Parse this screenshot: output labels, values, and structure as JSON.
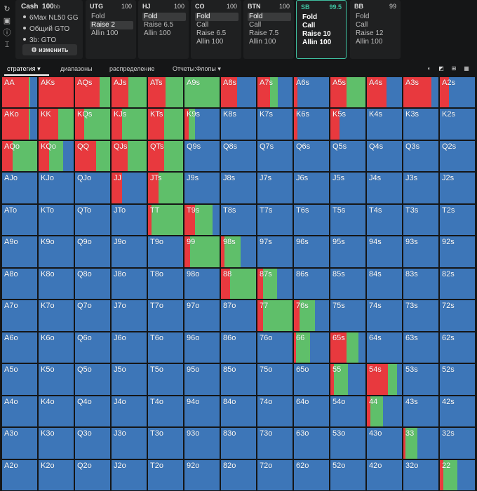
{
  "colors": {
    "raise": "#e8393e",
    "call": "#5fbf6a",
    "fold": "#3d76b8",
    "accent": "#3fbf9f"
  },
  "tools": [
    "refresh-icon",
    "save-icon",
    "info-icon",
    "filter-icon"
  ],
  "info": {
    "title": "Cash",
    "stack": "100",
    "stack_unit": "bb",
    "lines": [
      "6Max NL50 GG",
      "Общий GTO",
      "3b: GTO"
    ],
    "edit_label": "⚙ изменить"
  },
  "positions": [
    {
      "name": "UTG",
      "stack": "100",
      "actions": [
        "Fold",
        "Raise 2",
        "Allin 100"
      ],
      "selected": 1,
      "active": false
    },
    {
      "name": "HJ",
      "stack": "100",
      "actions": [
        "Fold",
        "Raise 6.5",
        "Allin 100"
      ],
      "selected": 0,
      "active": false
    },
    {
      "name": "CO",
      "stack": "100",
      "actions": [
        "Fold",
        "Call",
        "Raise 6.5",
        "Allin 100"
      ],
      "selected": 0,
      "active": false
    },
    {
      "name": "BTN",
      "stack": "100",
      "actions": [
        "Fold",
        "Call",
        "Raise 7.5",
        "Allin 100"
      ],
      "selected": 0,
      "active": false
    },
    {
      "name": "SB",
      "stack": "99.5",
      "actions": [
        "Fold",
        "Call",
        "Raise 10",
        "Allin 100"
      ],
      "selected": -1,
      "active": true
    },
    {
      "name": "BB",
      "stack": "99",
      "actions": [
        "Fold",
        "Call",
        "Raise 12",
        "Allin 100"
      ],
      "selected": -1,
      "active": false
    }
  ],
  "tabs": [
    "стратегия ▾",
    "диапазоны",
    "распределение",
    "Отчеты:Флопы ▾"
  ],
  "ranks": [
    "A",
    "K",
    "Q",
    "J",
    "T",
    "9",
    "8",
    "7",
    "6",
    "5",
    "4",
    "3",
    "2"
  ],
  "hand_freqs": {
    "AA": [
      0.75,
      0.05
    ],
    "AKs": [
      1.0,
      0.0
    ],
    "AQs": [
      0.7,
      0.3
    ],
    "AJs": [
      0.48,
      0.52
    ],
    "ATs": [
      0.5,
      0.5
    ],
    "A9s": [
      0.0,
      1.0
    ],
    "A8s": [
      0.45,
      0.0
    ],
    "A7s": [
      0.35,
      0.22
    ],
    "A6s": [
      0.1,
      0.0
    ],
    "A5s": [
      0.45,
      0.55
    ],
    "A4s": [
      0.55,
      0.0
    ],
    "A3s": [
      0.8,
      0.0
    ],
    "A2s": [
      0.25,
      0.0
    ],
    "AKo": [
      0.75,
      0.05
    ],
    "KK": [
      0.55,
      0.45
    ],
    "KQs": [
      0.25,
      0.75
    ],
    "KJs": [
      0.3,
      0.7
    ],
    "KTs": [
      0.45,
      0.55
    ],
    "K9s": [
      0.12,
      0.18
    ],
    "K6s": [
      0.1,
      0.0
    ],
    "K5s": [
      0.25,
      0.0
    ],
    "AQo": [
      0.3,
      0.7
    ],
    "KQo": [
      0.3,
      0.4
    ],
    "QQ": [
      0.6,
      0.4
    ],
    "QJs": [
      0.45,
      0.55
    ],
    "QTs": [
      0.45,
      0.55
    ],
    "JJ": [
      0.3,
      0.0
    ],
    "JTs": [
      0.3,
      0.7
    ],
    "TT": [
      0.1,
      0.9
    ],
    "T9s": [
      0.3,
      0.5
    ],
    "99": [
      0.15,
      0.85
    ],
    "98s": [
      0.1,
      0.45
    ],
    "88": [
      0.25,
      0.75
    ],
    "87s": [
      0.15,
      0.4
    ],
    "77": [
      0.15,
      0.85
    ],
    "76s": [
      0.15,
      0.45
    ],
    "66": [
      0.05,
      0.4
    ],
    "65s": [
      0.45,
      0.35
    ],
    "55": [
      0.1,
      0.4
    ],
    "54s": [
      0.6,
      0.25
    ],
    "44": [
      0.1,
      0.35
    ],
    "33": [
      0.05,
      0.35
    ],
    "22": [
      0.1,
      0.4
    ]
  }
}
